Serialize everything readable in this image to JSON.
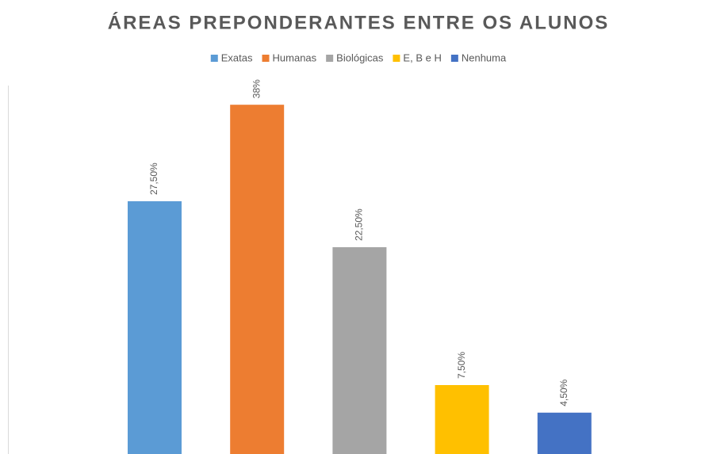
{
  "chart_data": {
    "type": "bar",
    "title": "ÁREAS PREPONDERANTES ENTRE OS ALUNOS",
    "series": [
      {
        "name": "Exatas",
        "color": "#5b9bd5",
        "values": [
          27.5
        ],
        "value_labels": [
          "27,50%"
        ]
      },
      {
        "name": "Humanas",
        "color": "#ed7d31",
        "values": [
          38
        ],
        "value_labels": [
          "38%"
        ]
      },
      {
        "name": "Biológicas",
        "color": "#a5a5a5",
        "values": [
          22.5
        ],
        "value_labels": [
          "22,50%"
        ]
      },
      {
        "name": "E, B e H",
        "color": "#ffc000",
        "values": [
          7.5
        ],
        "value_labels": [
          "7,50%"
        ]
      },
      {
        "name": "Nenhuma",
        "color": "#4472c4",
        "values": [
          4.5
        ],
        "value_labels": [
          "4,50%"
        ]
      }
    ],
    "ylim": [
      0,
      40
    ],
    "legend": "top"
  }
}
